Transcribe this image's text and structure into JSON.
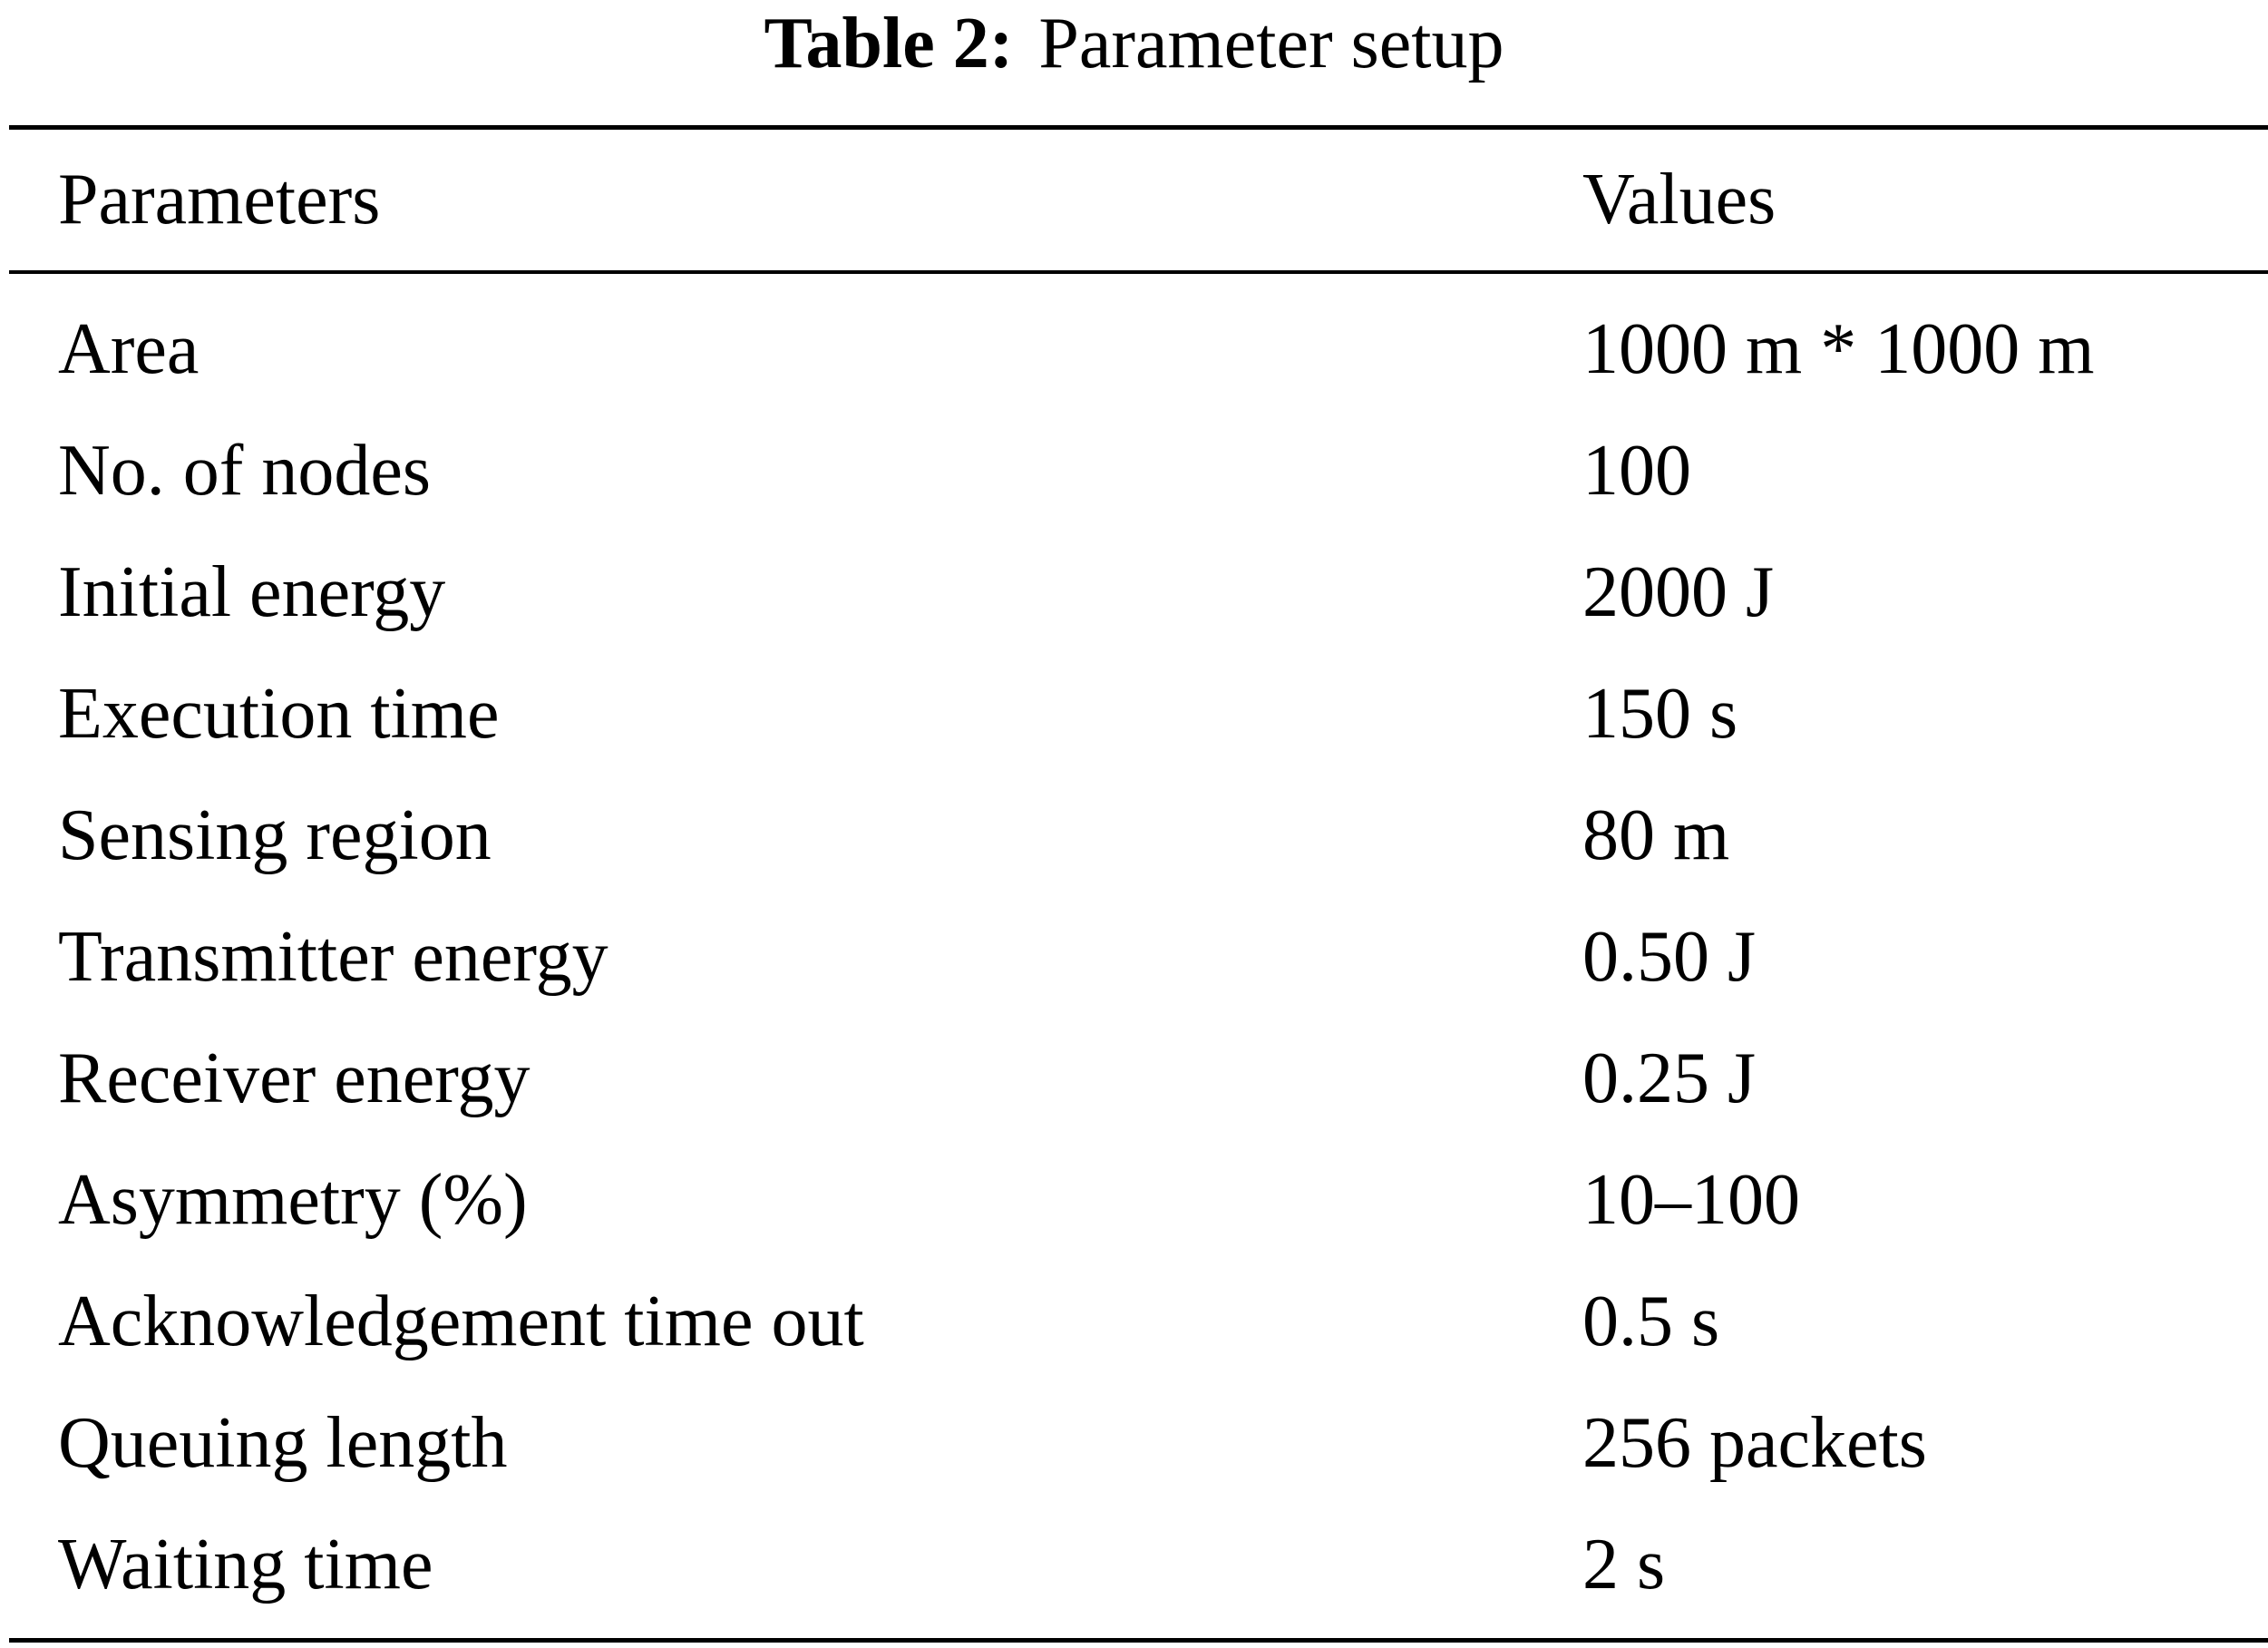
{
  "caption": {
    "label": "Table 2:",
    "title": "Parameter setup"
  },
  "table": {
    "headers": [
      "Parameters",
      "Values"
    ],
    "rows": [
      {
        "parameter": "Area",
        "value": "1000 m * 1000 m"
      },
      {
        "parameter": "No. of nodes",
        "value": "100"
      },
      {
        "parameter": "Initial energy",
        "value": "2000 J"
      },
      {
        "parameter": "Execution time",
        "value": "150 s"
      },
      {
        "parameter": "Sensing region",
        "value": "80 m"
      },
      {
        "parameter": "Transmitter energy",
        "value": "0.50 J"
      },
      {
        "parameter": "Receiver energy",
        "value": "0.25 J"
      },
      {
        "parameter": "Asymmetry (%)",
        "value": "10–100"
      },
      {
        "parameter": "Acknowledgement time out",
        "value": "0.5 s"
      },
      {
        "parameter": "Queuing length",
        "value": "256 packets"
      },
      {
        "parameter": "Waiting time",
        "value": "2 s"
      }
    ]
  }
}
